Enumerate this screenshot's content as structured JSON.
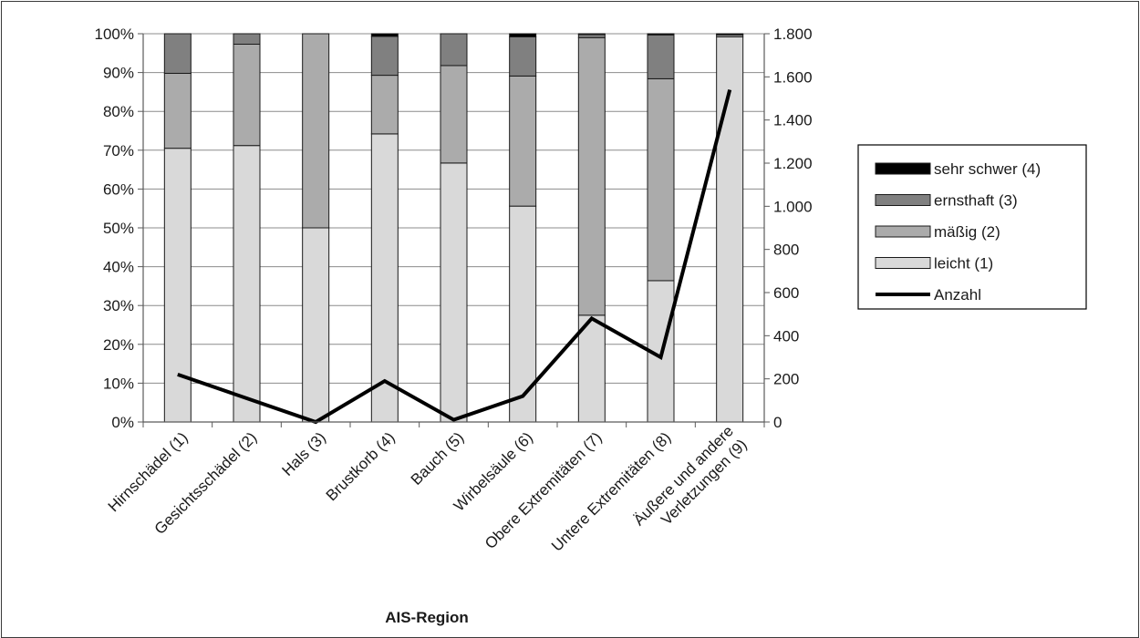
{
  "chart_data": {
    "type": "bar",
    "stacked": "percent",
    "xlabel": "AIS-Region",
    "categories": [
      "Hirnschädel (1)",
      "Gesichtsschädel (2)",
      "Hals (3)",
      "Brustkorb (4)",
      "Bauch (5)",
      "Wirbelsäule (6)",
      "Obere Extremitäten (7)",
      "Untere Extremitäten (8)",
      "Äußere und andere Verletzungen (9)"
    ],
    "category_lines": [
      [
        "Hirnschädel (1)"
      ],
      [
        "Gesichtsschädel (2)"
      ],
      [
        "Hals (3)"
      ],
      [
        "Brustkorb (4)"
      ],
      [
        "Bauch (5)"
      ],
      [
        "Wirbelsäule (6)"
      ],
      [
        "Obere Extremitäten (7)"
      ],
      [
        "Untere Extremitäten (8)"
      ],
      [
        "Äußere und andere",
        "Verletzungen (9)"
      ]
    ],
    "series": [
      {
        "name": "leicht (1)",
        "color": "#d9d9d9",
        "values": [
          70.5,
          71.2,
          50.0,
          74.2,
          66.7,
          55.6,
          27.5,
          36.4,
          99.2
        ]
      },
      {
        "name": "mäßig (2)",
        "color": "#ababab",
        "values": [
          19.3,
          26.1,
          50.0,
          15.1,
          25.1,
          33.5,
          71.5,
          52.0,
          0.5
        ]
      },
      {
        "name": "ernsthaft (3)",
        "color": "#808080",
        "values": [
          10.2,
          2.7,
          0.0,
          10.0,
          8.2,
          10.1,
          0.8,
          11.3,
          0.2
        ]
      },
      {
        "name": "sehr schwer (4)",
        "color": "#000000",
        "values": [
          0.0,
          0.0,
          0.0,
          0.7,
          0.0,
          0.8,
          0.2,
          0.3,
          0.1
        ]
      }
    ],
    "line_series": {
      "name": "Anzahl",
      "color": "#000000",
      "axis": "right",
      "values": [
        220,
        110,
        0,
        190,
        10,
        120,
        480,
        300,
        1540
      ]
    },
    "y_left": {
      "ylim": [
        0,
        100
      ],
      "ticks": [
        0,
        10,
        20,
        30,
        40,
        50,
        60,
        70,
        80,
        90,
        100
      ],
      "tick_labels": [
        "0%",
        "10%",
        "20%",
        "30%",
        "40%",
        "50%",
        "60%",
        "70%",
        "80%",
        "90%",
        "100%"
      ]
    },
    "y_right": {
      "ylim": [
        0,
        1800
      ],
      "ticks": [
        0,
        200,
        400,
        600,
        800,
        1000,
        1200,
        1400,
        1600,
        1800
      ],
      "tick_labels": [
        "0",
        "200",
        "400",
        "600",
        "800",
        "1.000",
        "1.200",
        "1.400",
        "1.600",
        "1.800"
      ]
    },
    "grid": true,
    "legend": {
      "position": "right",
      "order": [
        "sehr schwer (4)",
        "ernsthaft (3)",
        "mäßig (2)",
        "leicht (1)",
        "Anzahl"
      ]
    }
  }
}
